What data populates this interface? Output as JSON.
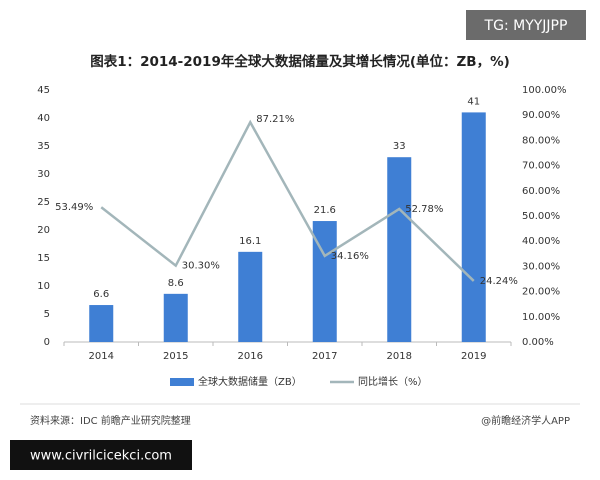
{
  "watermark": "TG: MYYJJPP",
  "chart_data": {
    "type": "combo",
    "title": "图表1：2014-2019年全球大数据储量及其增长情况(单位：ZB，%)",
    "categories": [
      "2014",
      "2015",
      "2016",
      "2017",
      "2018",
      "2019"
    ],
    "series": [
      {
        "name": "全球大数据储量（ZB）",
        "type": "bar",
        "color": "#3f7fd4",
        "values": [
          6.6,
          8.6,
          16.1,
          21.6,
          33,
          41
        ]
      },
      {
        "name": "同比增长（%）",
        "type": "line",
        "axis": "y2",
        "color": "#a3b6ba",
        "values": [
          53.49,
          30.3,
          87.21,
          34.16,
          52.78,
          24.24
        ],
        "value_labels": [
          "53.49%",
          "30.30%",
          "87.21%",
          "34.16%",
          "52.78%",
          "24.24%"
        ]
      }
    ],
    "ylim": [
      0,
      45
    ],
    "yticks": [
      0,
      5,
      10,
      15,
      20,
      25,
      30,
      35,
      40,
      45
    ],
    "y2lim": [
      0,
      100
    ],
    "y2ticks": [
      {
        "value": 0,
        "label": "0.00%"
      },
      {
        "value": 10,
        "label": "10.00%"
      },
      {
        "value": 20,
        "label": "20.00%"
      },
      {
        "value": 30,
        "label": "30.00%"
      },
      {
        "value": 40,
        "label": "40.00%"
      },
      {
        "value": 50,
        "label": "50.00%"
      },
      {
        "value": 60,
        "label": "60.00%"
      },
      {
        "value": 70,
        "label": "70.00%"
      },
      {
        "value": 80,
        "label": "80.00%"
      },
      {
        "value": 90,
        "label": "90.00%"
      },
      {
        "value": 100,
        "label": "100.00%"
      }
    ],
    "grid": false
  },
  "source": "资料来源：IDC 前瞻产业研究院整理",
  "credit": "@前瞻经济学人APP",
  "site": "www.civrilcicekci.com"
}
